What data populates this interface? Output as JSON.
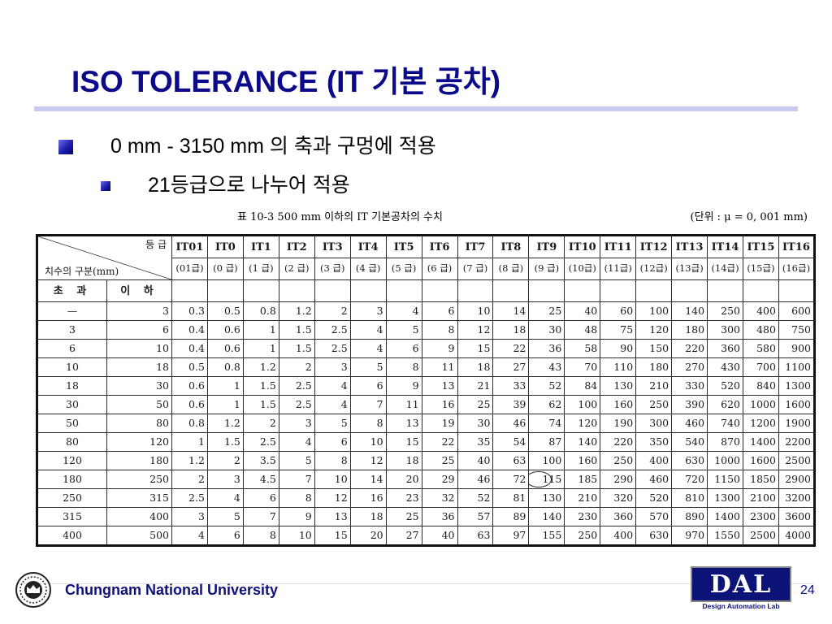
{
  "slide": {
    "title": "ISO TOLERANCE (IT 기본 공차)",
    "bullets": [
      {
        "text": "0 mm - 3150 mm 의 축과 구멍에 적용"
      },
      {
        "text": "21등급으로 나누어 적용"
      }
    ],
    "page_number": "24"
  },
  "table": {
    "caption_left": "표 10-3  500 mm 이하의 IT 기본공차의 수치",
    "caption_right": "(단위 : μ = 0, 001 mm)",
    "corner_grade": "등 급",
    "corner_size": "치수의 구분(mm)",
    "range_over": "초 과",
    "range_upto": "이 하",
    "grades": [
      {
        "it": "IT01",
        "label": "(01급)"
      },
      {
        "it": "IT0",
        "label": "(0 급)"
      },
      {
        "it": "IT1",
        "label": "(1 급)"
      },
      {
        "it": "IT2",
        "label": "(2 급)"
      },
      {
        "it": "IT3",
        "label": "(3 급)"
      },
      {
        "it": "IT4",
        "label": "(4 급)"
      },
      {
        "it": "IT5",
        "label": "(5 급)"
      },
      {
        "it": "IT6",
        "label": "(6 급)"
      },
      {
        "it": "IT7",
        "label": "(7 급)"
      },
      {
        "it": "IT8",
        "label": "(8 급)"
      },
      {
        "it": "IT9",
        "label": "(9 급)"
      },
      {
        "it": "IT10",
        "label": "(10급)"
      },
      {
        "it": "IT11",
        "label": "(11급)"
      },
      {
        "it": "IT12",
        "label": "(12급)"
      },
      {
        "it": "IT13",
        "label": "(13급)"
      },
      {
        "it": "IT14",
        "label": "(14급)"
      },
      {
        "it": "IT15",
        "label": "(15급)"
      },
      {
        "it": "IT16",
        "label": "(16급)"
      }
    ],
    "rows": [
      {
        "over": "—",
        "upto": "3",
        "values": [
          "0.3",
          "0.5",
          "0.8",
          "1.2",
          "2",
          "3",
          "4",
          "6",
          "10",
          "14",
          "25",
          "40",
          "60",
          "100",
          "140",
          "250",
          "400",
          "600"
        ]
      },
      {
        "over": "3",
        "upto": "6",
        "values": [
          "0.4",
          "0.6",
          "1",
          "1.5",
          "2.5",
          "4",
          "5",
          "8",
          "12",
          "18",
          "30",
          "48",
          "75",
          "120",
          "180",
          "300",
          "480",
          "750"
        ]
      },
      {
        "over": "6",
        "upto": "10",
        "values": [
          "0.4",
          "0.6",
          "1",
          "1.5",
          "2.5",
          "4",
          "6",
          "9",
          "15",
          "22",
          "36",
          "58",
          "90",
          "150",
          "220",
          "360",
          "580",
          "900"
        ]
      },
      {
        "over": "10",
        "upto": "18",
        "values": [
          "0.5",
          "0.8",
          "1.2",
          "2",
          "3",
          "5",
          "8",
          "11",
          "18",
          "27",
          "43",
          "70",
          "110",
          "180",
          "270",
          "430",
          "700",
          "1100"
        ]
      },
      {
        "over": "18",
        "upto": "30",
        "values": [
          "0.6",
          "1",
          "1.5",
          "2.5",
          "4",
          "6",
          "9",
          "13",
          "21",
          "33",
          "52",
          "84",
          "130",
          "210",
          "330",
          "520",
          "840",
          "1300"
        ]
      },
      {
        "over": "30",
        "upto": "50",
        "values": [
          "0.6",
          "1",
          "1.5",
          "2.5",
          "4",
          "7",
          "11",
          "16",
          "25",
          "39",
          "62",
          "100",
          "160",
          "250",
          "390",
          "620",
          "1000",
          "1600"
        ]
      },
      {
        "over": "50",
        "upto": "80",
        "values": [
          "0.8",
          "1.2",
          "2",
          "3",
          "5",
          "8",
          "13",
          "19",
          "30",
          "46",
          "74",
          "120",
          "190",
          "300",
          "460",
          "740",
          "1200",
          "1900"
        ]
      },
      {
        "over": "80",
        "upto": "120",
        "values": [
          "1",
          "1.5",
          "2.5",
          "4",
          "6",
          "10",
          "15",
          "22",
          "35",
          "54",
          "87",
          "140",
          "220",
          "350",
          "540",
          "870",
          "1400",
          "2200"
        ]
      },
      {
        "over": "120",
        "upto": "180",
        "values": [
          "1.2",
          "2",
          "3.5",
          "5",
          "8",
          "12",
          "18",
          "25",
          "40",
          "63",
          "100",
          "160",
          "250",
          "400",
          "630",
          "1000",
          "1600",
          "2500"
        ]
      },
      {
        "over": "180",
        "upto": "250",
        "values": [
          "2",
          "3",
          "4.5",
          "7",
          "10",
          "14",
          "20",
          "29",
          "46",
          "72",
          "115",
          "185",
          "290",
          "460",
          "720",
          "1150",
          "1850",
          "2900"
        ]
      },
      {
        "over": "250",
        "upto": "315",
        "values": [
          "2.5",
          "4",
          "6",
          "8",
          "12",
          "16",
          "23",
          "32",
          "52",
          "81",
          "130",
          "210",
          "320",
          "520",
          "810",
          "1300",
          "2100",
          "3200"
        ]
      },
      {
        "over": "315",
        "upto": "400",
        "values": [
          "3",
          "5",
          "7",
          "9",
          "13",
          "18",
          "25",
          "36",
          "57",
          "89",
          "140",
          "230",
          "360",
          "570",
          "890",
          "1400",
          "2300",
          "3600"
        ]
      },
      {
        "over": "400",
        "upto": "500",
        "values": [
          "4",
          "6",
          "8",
          "10",
          "15",
          "20",
          "27",
          "40",
          "63",
          "97",
          "155",
          "250",
          "400",
          "630",
          "970",
          "1550",
          "2500",
          "4000"
        ]
      }
    ],
    "circled_cell": {
      "row": 9,
      "col": 10
    }
  },
  "footer": {
    "university": "Chungnam National University",
    "logo_text": "DAL",
    "logo_subtitle": "Design Automation Lab"
  },
  "colors": {
    "title": "#0a0a8a",
    "rule": "#c9c9f1",
    "bullet": "#1c1cae",
    "logo_bg": "#0d1478"
  }
}
